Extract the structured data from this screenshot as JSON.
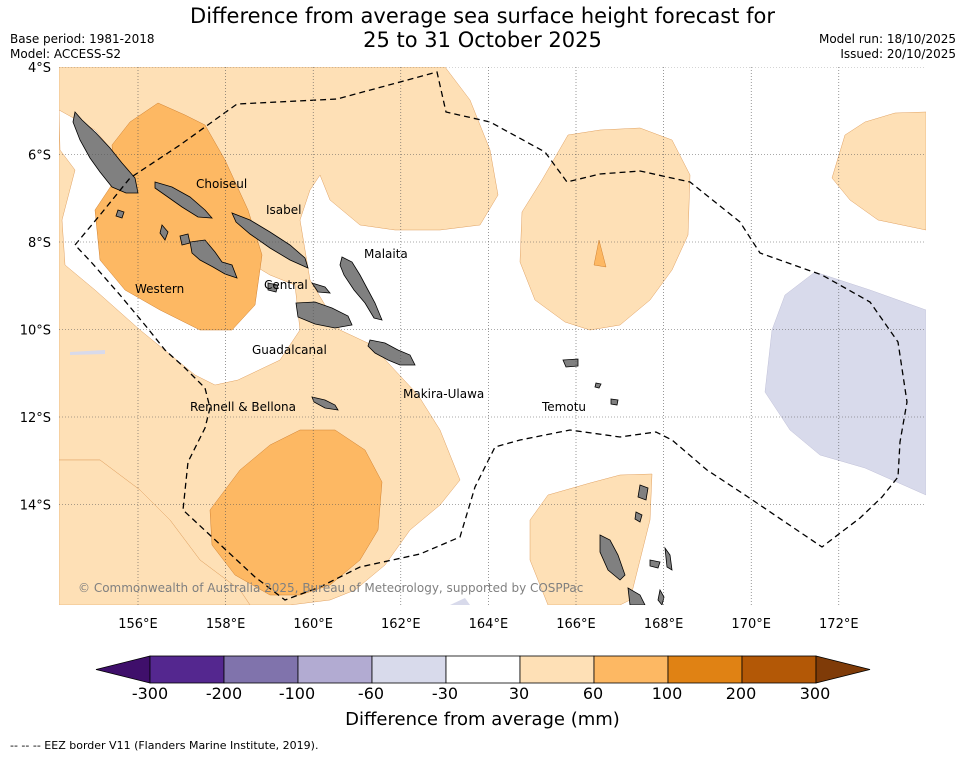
{
  "header": {
    "title_line1": "Difference from average sea surface height forecast for",
    "title_line2": "25 to 31 October 2025",
    "base_period": "Base period: 1981-2018",
    "model": "Model: ACCESS-S2",
    "model_run": "Model run: 18/10/2025",
    "issued": "Issued: 20/10/2025"
  },
  "map": {
    "lat_ticks": [
      {
        "value": -4,
        "label": "4°S"
      },
      {
        "value": -6,
        "label": "6°S"
      },
      {
        "value": -8,
        "label": "8°S"
      },
      {
        "value": -10,
        "label": "10°S"
      },
      {
        "value": -12,
        "label": "12°S"
      },
      {
        "value": -14,
        "label": "14°S"
      }
    ],
    "lon_ticks": [
      {
        "value": 156,
        "label": "156°E"
      },
      {
        "value": 158,
        "label": "158°E"
      },
      {
        "value": 160,
        "label": "160°E"
      },
      {
        "value": 162,
        "label": "162°E"
      },
      {
        "value": 164,
        "label": "164°E"
      },
      {
        "value": 166,
        "label": "166°E"
      },
      {
        "value": 168,
        "label": "168°E"
      },
      {
        "value": 170,
        "label": "170°E"
      },
      {
        "value": 172,
        "label": "172°E"
      }
    ],
    "regions": {
      "choiseul": "Choiseul",
      "isabel": "Isabel",
      "malaita": "Malaita",
      "western": "Western",
      "central": "Central",
      "guadalcanal": "Guadalcanal",
      "makira": "Makira-Ulawa",
      "rennell": "Rennell & Bellona",
      "temotu": "Temotu"
    },
    "copyright": "© Commonwealth of Australia 2025, Bureau of Meteorology, supported by COSPPac"
  },
  "colorbar": {
    "title": "Difference from average (mm)",
    "labels": [
      "-300",
      "-200",
      "-100",
      "-60",
      "-30",
      "30",
      "60",
      "100",
      "200",
      "300"
    ],
    "colors": [
      "#3f0f6b",
      "#54278f",
      "#8073ac",
      "#b2abd2",
      "#d8daeb",
      "#ffffff",
      "#fee0b6",
      "#fdb863",
      "#e08214",
      "#b35806",
      "#7f3b08"
    ]
  },
  "footer": {
    "eez_note": "--  --  -- EEZ border V11 (Flanders Marine Institute, 2019)."
  }
}
